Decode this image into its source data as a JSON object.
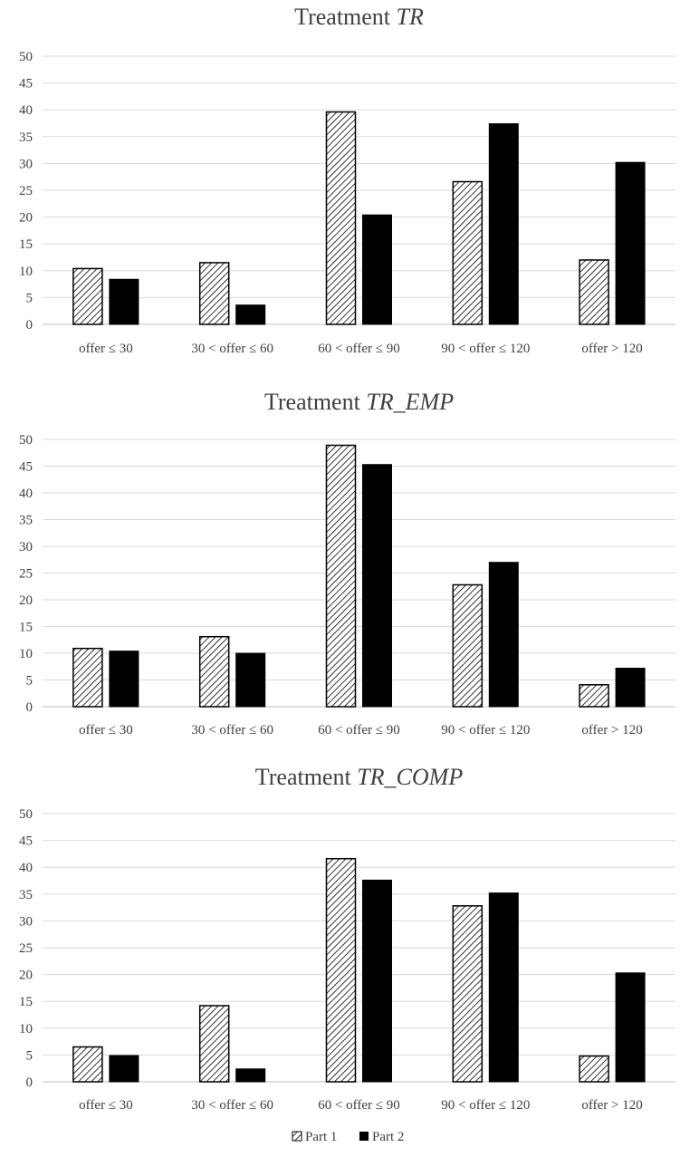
{
  "colors": {
    "part1_fill": "hatched-white",
    "part1_stroke": "#000000",
    "part2_fill": "#000000",
    "grid": "#d9d9d9",
    "text": "#404040"
  },
  "legend": {
    "items": [
      {
        "label": "Part 1",
        "style": "hatched"
      },
      {
        "label": "Part 2",
        "style": "solid"
      }
    ],
    "position": "bottom-center"
  },
  "chart_data": [
    {
      "type": "bar",
      "title_prefix": "Treatment",
      "title_italic": "TR",
      "categories": [
        "offer ≤ 30",
        "30 < offer ≤ 60",
        "60 < offer ≤ 90",
        "90 < offer ≤ 120",
        "offer > 120"
      ],
      "series": [
        {
          "name": "Part 1",
          "values": [
            10.4,
            11.5,
            39.6,
            26.6,
            12.0
          ]
        },
        {
          "name": "Part 2",
          "values": [
            8.4,
            3.6,
            20.4,
            37.4,
            30.2
          ]
        }
      ],
      "ylim": [
        0,
        50
      ],
      "yticks": [
        "0",
        "5",
        "10",
        "15",
        "20",
        "25",
        "30",
        "35",
        "40",
        "45",
        "50"
      ],
      "grid": true
    },
    {
      "type": "bar",
      "title_prefix": "Treatment",
      "title_italic": "TR_EMP",
      "categories": [
        "offer ≤ 30",
        "30 < offer ≤ 60",
        "60 < offer ≤ 90",
        "90 < offer ≤ 120",
        "offer > 120"
      ],
      "series": [
        {
          "name": "Part 1",
          "values": [
            10.9,
            13.1,
            48.9,
            22.8,
            4.1
          ]
        },
        {
          "name": "Part 2",
          "values": [
            10.4,
            10.0,
            45.3,
            27.0,
            7.2
          ]
        }
      ],
      "ylim": [
        0,
        50
      ],
      "yticks": [
        "0",
        "5",
        "10",
        "15",
        "20",
        "25",
        "30",
        "35",
        "40",
        "45",
        "50"
      ],
      "grid": true
    },
    {
      "type": "bar",
      "title_prefix": "Treatment",
      "title_italic": "TR_COMP",
      "categories": [
        "offer ≤ 30",
        "30 < offer ≤ 60",
        "60 < offer ≤ 90",
        "90 < offer ≤ 120",
        "offer > 120"
      ],
      "series": [
        {
          "name": "Part 1",
          "values": [
            6.5,
            14.2,
            41.6,
            32.8,
            4.8
          ]
        },
        {
          "name": "Part 2",
          "values": [
            4.9,
            2.4,
            37.6,
            35.2,
            20.3
          ]
        }
      ],
      "ylim": [
        0,
        50
      ],
      "yticks": [
        "0",
        "5",
        "10",
        "15",
        "20",
        "25",
        "30",
        "35",
        "40",
        "45",
        "50"
      ],
      "grid": true
    }
  ]
}
